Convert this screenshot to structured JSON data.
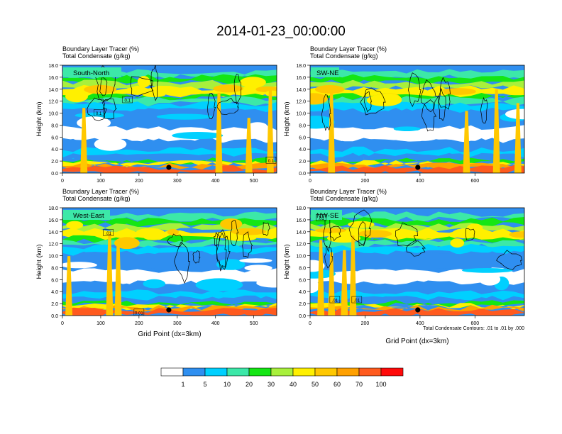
{
  "title": "2014-01-23_00:00:00",
  "colors": {
    "fill_bins": [
      "#ffffff",
      "#2f8ff0",
      "#00d0ff",
      "#3ce8a8",
      "#14e614",
      "#a8f03c",
      "#fff000",
      "#ffc800",
      "#ffa000",
      "#ff5a1e",
      "#ff0a0a"
    ],
    "contour_line": "#000000",
    "marker": "#000000"
  },
  "chart_data": [
    {
      "type": "contour",
      "panel_label": "South-North",
      "left_title_1": "Boundary Layer Tracer   (%)",
      "left_title_2": "Total Condensate   (g/kg)",
      "ylabel": "Height (km)",
      "xlabel": "",
      "xlim": [
        0,
        560
      ],
      "ylim": [
        0,
        18
      ],
      "xticks": [
        0,
        100,
        200,
        300,
        400,
        500
      ],
      "yticks": [
        "0.0",
        "2.0",
        "4.0",
        "6.0",
        "8.0",
        "10.0",
        "12.0",
        "14.0",
        "16.0",
        "18.0"
      ],
      "marker_x": 278,
      "contour_labels": [
        {
          "text": "0.1",
          "x": 170,
          "y": 12.2
        },
        {
          "text": "0.1",
          "x": 95,
          "y": 10.0
        },
        {
          "text": "0.1",
          "x": 545,
          "y": 2.1
        }
      ],
      "footnote": ""
    },
    {
      "type": "contour",
      "panel_label": "SW-NE",
      "left_title_1": "Boundary Layer Tracer   (%)",
      "left_title_2": "Total Condensate   (g/kg)",
      "ylabel": "Height (km)",
      "xlabel": "",
      "xlim": [
        0,
        780
      ],
      "ylim": [
        0,
        18
      ],
      "xticks": [
        0,
        200,
        400,
        600
      ],
      "yticks": [
        "0.0",
        "2.0",
        "4.0",
        "6.0",
        "8.0",
        "10.0",
        "12.0",
        "14.0",
        "16.0",
        "18.0"
      ],
      "marker_x": 392,
      "contour_labels": [],
      "footnote": ""
    },
    {
      "type": "contour",
      "panel_label": "West-East",
      "left_title_1": "Boundary Layer Tracer   (%)",
      "left_title_2": "Total Condensate   (g/kg)",
      "ylabel": "Height (km)",
      "xlabel": "Grid Point (dx=3km)",
      "xlim": [
        0,
        560
      ],
      "ylim": [
        0,
        18
      ],
      "xticks": [
        0,
        100,
        200,
        300,
        400,
        500
      ],
      "yticks": [
        "0.0",
        "2.0",
        "4.0",
        "6.0",
        "8.0",
        "10.0",
        "12.0",
        "14.0",
        "16.0",
        "18.0"
      ],
      "marker_x": 278,
      "contour_labels": [
        {
          "text": ".01",
          "x": 120,
          "y": 13.8
        },
        {
          "text": "0.01",
          "x": 200,
          "y": 0.5
        }
      ],
      "footnote": ""
    },
    {
      "type": "contour",
      "panel_label": "NW-SE",
      "left_title_1": "Boundary Layer Tracer   (%)",
      "left_title_2": "Total Condensate   (g/kg)",
      "ylabel": "Height (km)",
      "xlabel": "Grid Point (dx=3km)",
      "xlim": [
        0,
        780
      ],
      "ylim": [
        0,
        18
      ],
      "xticks": [
        0,
        200,
        400,
        600
      ],
      "yticks": [
        "0.0",
        "2.0",
        "4.0",
        "6.0",
        "8.0",
        "10.0",
        "12.0",
        "14.0",
        "16.0",
        "18.0"
      ],
      "marker_x": 392,
      "contour_labels": [
        {
          "text": ".01",
          "x": 90,
          "y": 2.6
        },
        {
          "text": ".01",
          "x": 170,
          "y": 2.6
        },
        {
          "text": ".01",
          "x": 40,
          "y": 16.3
        }
      ],
      "footnote": "Total Condensate Contours: .01 to .01 by .000"
    }
  ],
  "colorbar": {
    "levels": [
      "1",
      "5",
      "10",
      "20",
      "30",
      "40",
      "50",
      "60",
      "70",
      "100"
    ]
  }
}
